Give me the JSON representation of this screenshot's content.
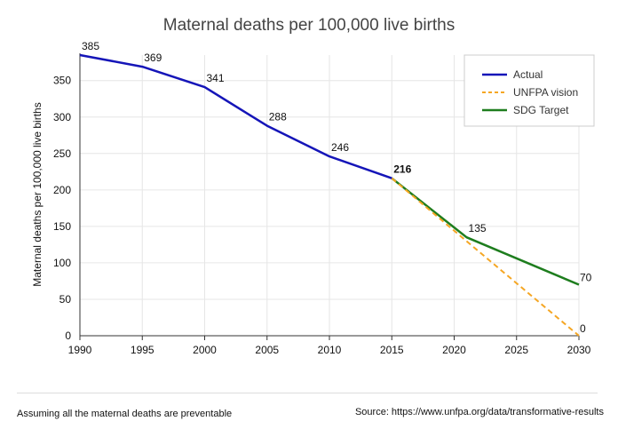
{
  "chart_data": {
    "type": "line",
    "title": "Maternal deaths per 100,000 live births",
    "ylabel": "Maternal deaths per 100,000 live births",
    "xlabel": "",
    "xlim": [
      1990,
      2030
    ],
    "ylim": [
      0,
      385
    ],
    "x_ticks": [
      1990,
      1995,
      2000,
      2005,
      2010,
      2015,
      2020,
      2025,
      2030
    ],
    "y_ticks": [
      0,
      50,
      100,
      150,
      200,
      250,
      300,
      350
    ],
    "grid": true,
    "legend_position": "top-right",
    "series": [
      {
        "name": "Actual",
        "color": "#1515b8",
        "style": "solid",
        "points": [
          [
            1990,
            385
          ],
          [
            1995,
            369
          ],
          [
            2000,
            341
          ],
          [
            2005,
            288
          ],
          [
            2010,
            246
          ],
          [
            2015,
            216
          ]
        ],
        "labels": [
          "385",
          "369",
          "341",
          "288",
          "246",
          "216"
        ]
      },
      {
        "name": "UNFPA vision",
        "color": "#f5a623",
        "style": "dashed",
        "points": [
          [
            2015,
            216
          ],
          [
            2030,
            0
          ]
        ],
        "labels": [
          "",
          "0"
        ]
      },
      {
        "name": "SDG Target",
        "color": "#1e7d1e",
        "style": "solid",
        "points": [
          [
            2015,
            216
          ],
          [
            2021,
            135
          ],
          [
            2030,
            70
          ]
        ],
        "labels": [
          "",
          "135",
          "70"
        ]
      }
    ]
  },
  "footer": {
    "note": "Assuming all the maternal deaths are preventable",
    "source": "Source: https://www.unfpa.org/data/transformative-results"
  }
}
